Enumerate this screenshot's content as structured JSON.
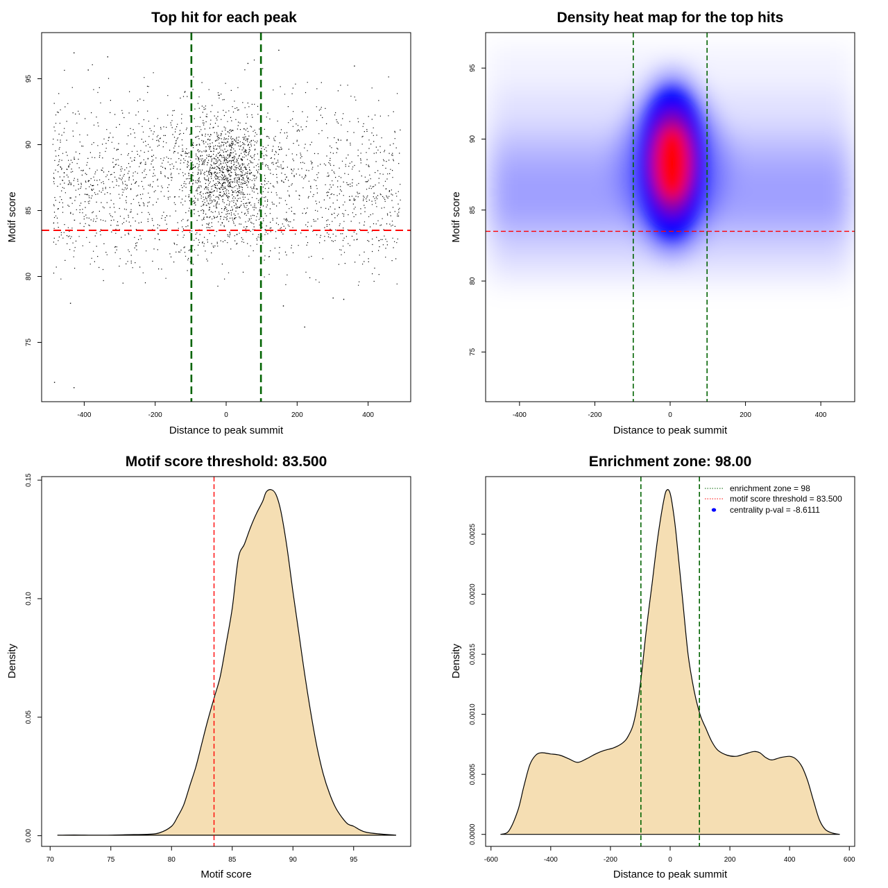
{
  "colors": {
    "enrichment": "#006400",
    "threshold": "#ff0000",
    "fill": "#f5deb3",
    "points": "#000000",
    "heat_low": "#0000ff",
    "heat_high": "#ff0000",
    "pval_marker": "#0000ff"
  },
  "chart_data": [
    {
      "type": "scatter",
      "title": "Top hit for each peak",
      "xlabel": "Distance to peak summit",
      "ylabel": "Motif score",
      "xlim": [
        -520,
        520
      ],
      "ylim": [
        70.5,
        98.5
      ],
      "xticks": [
        -400,
        -200,
        0,
        200,
        400
      ],
      "yticks": [
        75,
        80,
        85,
        90,
        95
      ],
      "vlines": [
        -98,
        98
      ],
      "hline": 83.5,
      "points_estimate": {
        "count": 9000,
        "x_range": [
          -490,
          490
        ],
        "background_score_mean": 86.8,
        "background_score_sd": 3.2,
        "central_fraction": 0.36,
        "central_x_sd": 58,
        "central_score_mean": 88,
        "central_score_sd": 2.2
      },
      "outliers": [
        [
          -485,
          72.0
        ],
        [
          -430,
          71.6
        ],
        [
          -440,
          78.0
        ],
        [
          -430,
          97.0
        ],
        [
          -335,
          96.7
        ],
        [
          60,
          96.2
        ],
        [
          147,
          97.2
        ],
        [
          300,
          78.4
        ],
        [
          330,
          78.3
        ],
        [
          360,
          96.0
        ],
        [
          -390,
          95.7
        ],
        [
          220,
          76.2
        ],
        [
          160,
          77.8
        ]
      ]
    },
    {
      "type": "heatmap",
      "title": "Density heat map for the top hits",
      "xlabel": "Distance to peak summit",
      "ylabel": "Motif score",
      "xlim": [
        -490,
        490
      ],
      "ylim": [
        71.5,
        97.5
      ],
      "xticks": [
        -400,
        -200,
        0,
        200,
        400
      ],
      "yticks": [
        75,
        80,
        85,
        90,
        95
      ],
      "vlines": [
        -98,
        98
      ],
      "hline": 83.5,
      "peak": {
        "x": 5,
        "y": 88.3
      }
    },
    {
      "type": "area",
      "title": "Motif score threshold: 83.500",
      "xlabel": "Motif score",
      "ylabel": "Density",
      "xlim": [
        69.3,
        99.7
      ],
      "ylim": [
        -0.0045,
        0.1515
      ],
      "xticks": [
        70,
        75,
        80,
        85,
        90,
        95
      ],
      "yticks": [
        0.0,
        0.05,
        0.1,
        0.15
      ],
      "ytick_labels": [
        "0.00",
        "0.05",
        "0.10",
        "0.15"
      ],
      "vline": 83.5,
      "x": [
        70.6,
        72.0,
        74.0,
        76.0,
        78.0,
        79.0,
        80.0,
        80.5,
        81.0,
        81.5,
        82.0,
        82.5,
        83.0,
        83.5,
        84.0,
        84.5,
        85.0,
        85.5,
        86.0,
        86.5,
        87.0,
        87.5,
        87.8,
        88.2,
        88.6,
        89.0,
        89.5,
        90.0,
        90.5,
        91.0,
        91.5,
        92.0,
        92.5,
        93.0,
        93.5,
        94.0,
        94.5,
        95.0,
        95.5,
        96.0,
        97.0,
        98.5
      ],
      "y": [
        0.0002,
        0.0003,
        0.0002,
        0.0004,
        0.0006,
        0.0012,
        0.004,
        0.008,
        0.013,
        0.021,
        0.029,
        0.039,
        0.049,
        0.058,
        0.067,
        0.081,
        0.096,
        0.117,
        0.123,
        0.13,
        0.136,
        0.141,
        0.145,
        0.146,
        0.144,
        0.137,
        0.122,
        0.103,
        0.085,
        0.067,
        0.051,
        0.037,
        0.026,
        0.018,
        0.012,
        0.008,
        0.005,
        0.004,
        0.0025,
        0.0015,
        0.0008,
        0.0002
      ]
    },
    {
      "type": "area",
      "title": "Enrichment zone: 98.00",
      "xlabel": "Distance to peak summit",
      "ylabel": "Density",
      "xlim": [
        -618,
        618
      ],
      "ylim": [
        -0.0001,
        0.00298
      ],
      "xticks": [
        -600,
        -400,
        -200,
        0,
        200,
        400,
        600
      ],
      "yticks": [
        0.0,
        0.0005,
        0.001,
        0.0015,
        0.002,
        0.0025
      ],
      "ytick_labels": [
        "0.0000",
        "0.0005",
        "0.0010",
        "0.0015",
        "0.0020",
        "0.0025"
      ],
      "vlines": [
        -98,
        98
      ],
      "x": [
        -568,
        -540,
        -510,
        -490,
        -470,
        -450,
        -430,
        -400,
        -370,
        -340,
        -310,
        -280,
        -250,
        -220,
        -190,
        -160,
        -140,
        -120,
        -100,
        -80,
        -60,
        -40,
        -20,
        -10,
        0,
        10,
        20,
        40,
        60,
        80,
        100,
        120,
        140,
        160,
        190,
        220,
        250,
        280,
        300,
        320,
        340,
        370,
        400,
        420,
        440,
        460,
        480,
        500,
        520,
        545,
        568
      ],
      "y": [
        0.0,
        3e-05,
        0.0002,
        0.0004,
        0.00058,
        0.00066,
        0.00068,
        0.00067,
        0.00066,
        0.00063,
        0.0006,
        0.00063,
        0.00067,
        0.0007,
        0.00072,
        0.00076,
        0.00082,
        0.00095,
        0.00125,
        0.0017,
        0.0021,
        0.0025,
        0.0028,
        0.00287,
        0.00284,
        0.0027,
        0.0025,
        0.002,
        0.0015,
        0.0012,
        0.001,
        0.00088,
        0.00077,
        0.0007,
        0.00066,
        0.00065,
        0.00067,
        0.00069,
        0.00068,
        0.00064,
        0.00062,
        0.00064,
        0.00065,
        0.00063,
        0.00057,
        0.00045,
        0.00028,
        0.00012,
        4e-05,
        1e-05,
        0.0
      ],
      "legend": {
        "position": "top-right",
        "items": [
          {
            "label": "enrichment zone = 98",
            "style": "dotted",
            "color_key": "enrichment"
          },
          {
            "label": "motif score threshold = 83.500",
            "style": "dotted",
            "color_key": "threshold"
          },
          {
            "label": "centrality p-val = -8.6111",
            "style": "point",
            "color_key": "pval_marker"
          }
        ]
      }
    }
  ]
}
